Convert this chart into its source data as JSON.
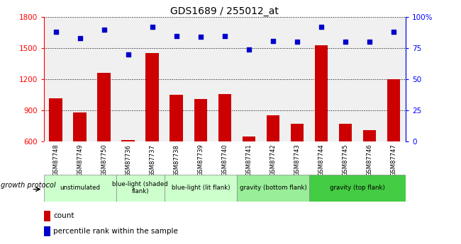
{
  "title": "GDS1689 / 255012_at",
  "samples": [
    "GSM87748",
    "GSM87749",
    "GSM87750",
    "GSM87736",
    "GSM87737",
    "GSM87738",
    "GSM87739",
    "GSM87740",
    "GSM87741",
    "GSM87742",
    "GSM87743",
    "GSM87744",
    "GSM87745",
    "GSM87746",
    "GSM87747"
  ],
  "counts": [
    1020,
    880,
    1260,
    615,
    1450,
    1050,
    1010,
    1060,
    650,
    855,
    770,
    1530,
    770,
    710,
    1200
  ],
  "percentiles": [
    88,
    83,
    90,
    70,
    92,
    85,
    84,
    85,
    74,
    81,
    80,
    92,
    80,
    80,
    88
  ],
  "bar_color": "#cc0000",
  "dot_color": "#0000cc",
  "ylim_left": [
    600,
    1800
  ],
  "ylim_right": [
    0,
    100
  ],
  "yticks_left": [
    600,
    900,
    1200,
    1500,
    1800
  ],
  "yticks_right": [
    0,
    25,
    50,
    75,
    100
  ],
  "ytick_labels_right": [
    "0",
    "25",
    "50",
    "75",
    "100%"
  ],
  "groups": [
    {
      "label": "unstimulated",
      "start": 0,
      "end": 3,
      "color": "#ccffcc"
    },
    {
      "label": "blue-light (shaded\nflank)",
      "start": 3,
      "end": 5,
      "color": "#ccffcc"
    },
    {
      "label": "blue-light (lit flank)",
      "start": 5,
      "end": 8,
      "color": "#ccffcc"
    },
    {
      "label": "gravity (bottom flank)",
      "start": 8,
      "end": 11,
      "color": "#99ee99"
    },
    {
      "label": "gravity (top flank)",
      "start": 11,
      "end": 15,
      "color": "#44cc44"
    }
  ],
  "legend_labels": [
    "count",
    "percentile rank within the sample"
  ],
  "growth_protocol_label": "growth protocol",
  "xtick_bg": "#d8d8d8",
  "plot_bg": "#f0f0f0"
}
